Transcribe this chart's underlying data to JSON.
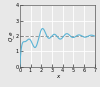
{
  "title": "",
  "xlabel": "x",
  "ylabel": "Q_e",
  "xlim": [
    0,
    7
  ],
  "ylim": [
    0,
    4
  ],
  "yticks": [
    0,
    1,
    2,
    3,
    4
  ],
  "xticks": [
    0,
    1,
    2,
    3,
    4,
    5,
    6,
    7
  ],
  "line_color": "#5ab4d6",
  "dashed_color": "#888888",
  "dashed_y": 2,
  "background_color": "#e8e8e8",
  "grid_color": "#ffffff",
  "figsize": [
    1.0,
    0.87
  ],
  "dpi": 100
}
